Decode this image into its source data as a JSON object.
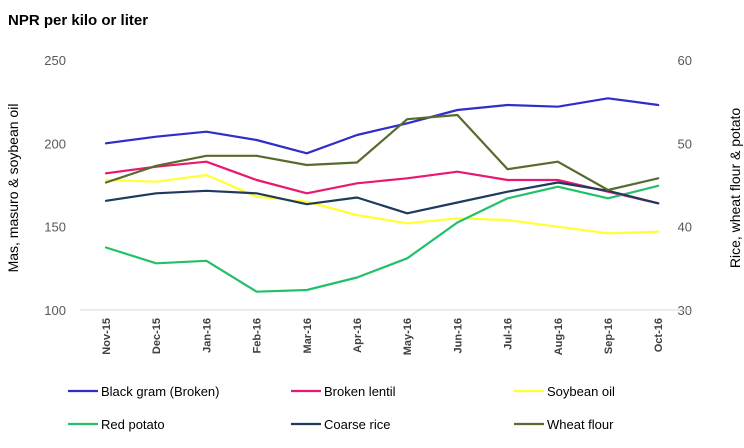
{
  "chart_data": {
    "type": "line",
    "title": "NPR per kilo or liter",
    "ylabel_left": "Mas, masuro & soybean oil",
    "ylabel_right": "Rice, wheat flour & potato",
    "ylim_left": [
      100,
      250
    ],
    "ylim_right": [
      30,
      60
    ],
    "yticks_left": [
      100,
      150,
      200,
      250
    ],
    "yticks_right": [
      30,
      40,
      50,
      60
    ],
    "grid": false,
    "legend_position": "bottom",
    "categories": [
      "Nov-15",
      "Dec-15",
      "Jan-16",
      "Feb-16",
      "Mar-16",
      "Apr-16",
      "May-16",
      "Jun-16",
      "Jul-16",
      "Aug-16",
      "Sep-16",
      "Oct-16"
    ],
    "series": [
      {
        "name": "Black gram (Broken)",
        "axis": "left",
        "color": "#2e2ec8",
        "values": [
          200,
          204,
          207,
          202,
          194,
          205,
          212,
          220,
          223,
          222,
          227,
          223
        ]
      },
      {
        "name": "Broken lentil",
        "axis": "left",
        "color": "#e8196e",
        "values": [
          182,
          186,
          189,
          178,
          170,
          176,
          179,
          183,
          178,
          178,
          171,
          164
        ]
      },
      {
        "name": "Soybean oil",
        "axis": "left",
        "color": "#ffff33",
        "values": [
          178,
          177,
          181,
          168,
          165,
          157,
          152,
          155,
          154,
          150,
          146,
          147
        ]
      },
      {
        "name": "Red potato",
        "axis": "right",
        "color": "#22c06a",
        "values": [
          37.5,
          35.6,
          35.9,
          32.2,
          32.4,
          33.9,
          36.2,
          40.5,
          43.4,
          44.8,
          43.4,
          44.9
        ]
      },
      {
        "name": "Coarse rice",
        "axis": "right",
        "color": "#1f3a5f",
        "values": [
          43.1,
          44.0,
          44.3,
          44.0,
          42.7,
          43.5,
          41.6,
          42.9,
          44.2,
          45.3,
          44.3,
          42.8
        ]
      },
      {
        "name": "Wheat flour",
        "axis": "right",
        "color": "#586b2f",
        "values": [
          45.3,
          47.3,
          48.5,
          48.5,
          47.4,
          47.7,
          52.9,
          53.4,
          46.9,
          47.8,
          44.4,
          45.8
        ]
      }
    ]
  }
}
